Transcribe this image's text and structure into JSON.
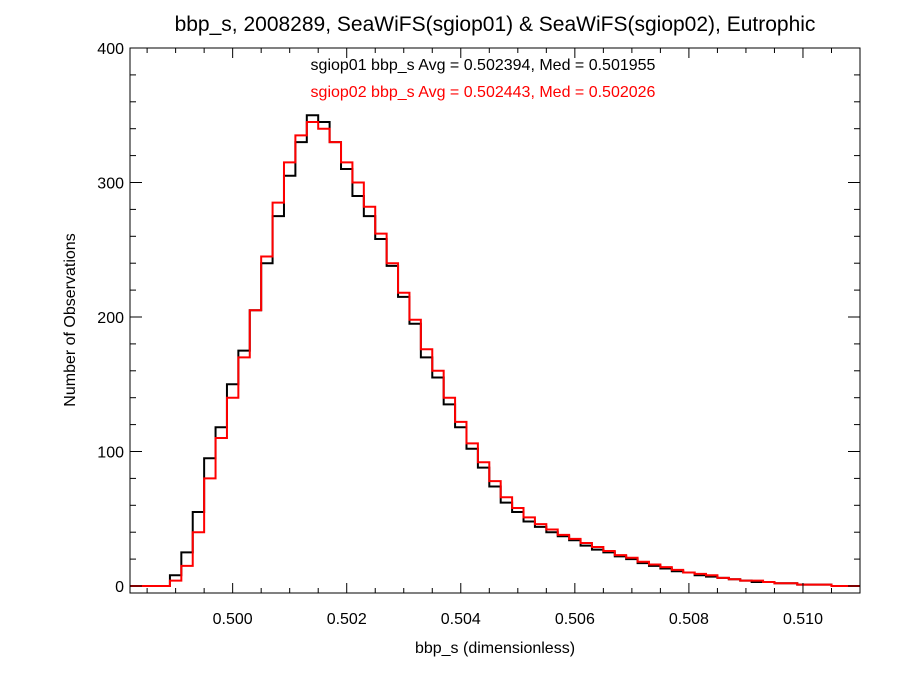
{
  "chart_data": {
    "type": "histogram",
    "title": "bbp_s, 2008289, SeaWiFS(sgiop01) & SeaWiFS(sgiop02), Eutrophic",
    "xlabel": "bbp_s (dimensionless)",
    "ylabel": "Number of Observations",
    "xlim": [
      0.4982,
      0.511
    ],
    "ylim": [
      0,
      400
    ],
    "xticks": [
      0.5,
      0.502,
      0.504,
      0.506,
      0.508,
      0.51
    ],
    "xtick_labels": [
      "0.500",
      "0.502",
      "0.504",
      "0.506",
      "0.508",
      "0.510"
    ],
    "yticks": [
      0,
      100,
      200,
      300,
      400
    ],
    "ytick_labels": [
      "0",
      "100",
      "200",
      "300",
      "400"
    ],
    "grid": false,
    "annotations": [
      {
        "text": "sgiop01 bbp_s Avg = 0.502394, Med = 0.501955",
        "color": "#000000"
      },
      {
        "text": "sgiop02 bbp_s Avg = 0.502443, Med = 0.502026",
        "color": "#ff0000"
      }
    ],
    "series": [
      {
        "color": "#000000",
        "x": [
          0.4988,
          0.499,
          0.4992,
          0.4994,
          0.4996,
          0.4998,
          0.5,
          0.5002,
          0.5004,
          0.5006,
          0.5008,
          0.501,
          0.5012,
          0.5014,
          0.5016,
          0.5018,
          0.502,
          0.5022,
          0.5024,
          0.5026,
          0.5028,
          0.503,
          0.5032,
          0.5034,
          0.5036,
          0.5038,
          0.504,
          0.5042,
          0.5044,
          0.5046,
          0.5048,
          0.505,
          0.5052,
          0.5054,
          0.5056,
          0.5058,
          0.506,
          0.5062,
          0.5064,
          0.5066,
          0.5068,
          0.507,
          0.5072,
          0.5074,
          0.5076,
          0.5078,
          0.508,
          0.5082,
          0.5084,
          0.5086,
          0.5088,
          0.509,
          0.5092,
          0.5094,
          0.5096,
          0.5098,
          0.51,
          0.5102,
          0.5104,
          0.5106,
          0.5108
        ],
        "values": [
          0,
          8,
          25,
          55,
          95,
          118,
          150,
          175,
          205,
          240,
          275,
          305,
          330,
          350,
          345,
          330,
          310,
          290,
          275,
          258,
          238,
          215,
          195,
          170,
          155,
          135,
          118,
          102,
          88,
          74,
          62,
          55,
          48,
          44,
          40,
          37,
          34,
          30,
          27,
          25,
          22,
          20,
          17,
          15,
          13,
          11,
          10,
          8,
          7,
          6,
          5,
          4,
          3,
          3,
          2,
          2,
          1,
          1,
          1,
          0,
          0
        ]
      },
      {
        "color": "#ff0000",
        "x": [
          0.4988,
          0.499,
          0.4992,
          0.4994,
          0.4996,
          0.4998,
          0.5,
          0.5002,
          0.5004,
          0.5006,
          0.5008,
          0.501,
          0.5012,
          0.5014,
          0.5016,
          0.5018,
          0.502,
          0.5022,
          0.5024,
          0.5026,
          0.5028,
          0.503,
          0.5032,
          0.5034,
          0.5036,
          0.5038,
          0.504,
          0.5042,
          0.5044,
          0.5046,
          0.5048,
          0.505,
          0.5052,
          0.5054,
          0.5056,
          0.5058,
          0.506,
          0.5062,
          0.5064,
          0.5066,
          0.5068,
          0.507,
          0.5072,
          0.5074,
          0.5076,
          0.5078,
          0.508,
          0.5082,
          0.5084,
          0.5086,
          0.5088,
          0.509,
          0.5092,
          0.5094,
          0.5096,
          0.5098,
          0.51,
          0.5102,
          0.5104,
          0.5106,
          0.5108
        ],
        "values": [
          0,
          4,
          15,
          40,
          80,
          110,
          140,
          170,
          205,
          245,
          285,
          315,
          335,
          345,
          340,
          330,
          315,
          300,
          282,
          262,
          240,
          218,
          198,
          176,
          160,
          140,
          122,
          106,
          92,
          78,
          66,
          58,
          51,
          46,
          42,
          38,
          35,
          32,
          29,
          26,
          23,
          21,
          18,
          16,
          14,
          12,
          10,
          9,
          8,
          6,
          5,
          4,
          4,
          3,
          2,
          2,
          1,
          1,
          1,
          0,
          0
        ]
      }
    ]
  }
}
